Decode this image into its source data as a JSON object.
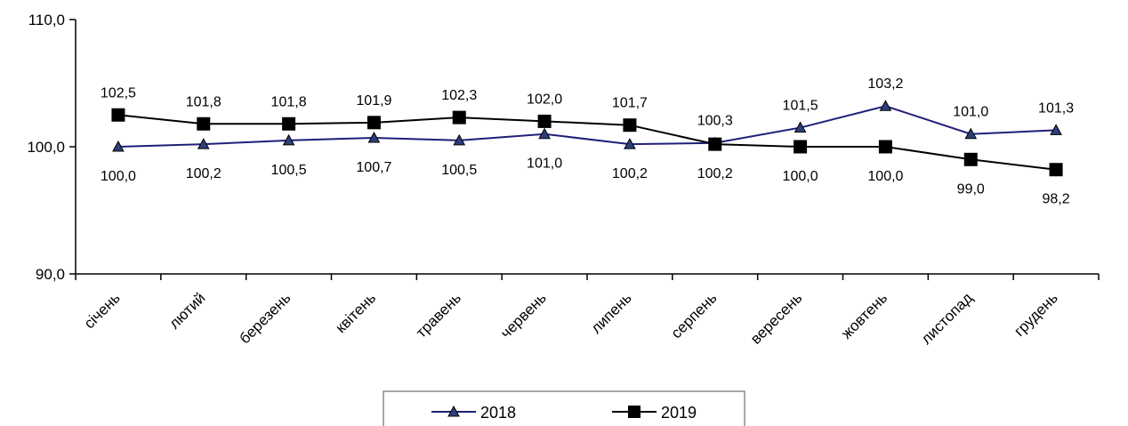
{
  "chart_data": {
    "type": "line",
    "categories": [
      "січень",
      "лютий",
      "березень",
      "квітень",
      "травень",
      "червень",
      "липень",
      "серпень",
      "вересень",
      "жовтень",
      "листопад",
      "грудень"
    ],
    "series": [
      {
        "name": "2018",
        "values": [
          100.0,
          100.2,
          100.5,
          100.7,
          100.5,
          101.0,
          100.2,
          100.3,
          101.5,
          103.2,
          101.0,
          101.3
        ],
        "labels": [
          "100,0",
          "100,2",
          "100,5",
          "100,7",
          "100,5",
          "101,0",
          "100,2",
          "100,3",
          "101,5",
          "103,2",
          "101,0",
          "101,3"
        ],
        "color": "#1f1f7a",
        "marker": "triangle"
      },
      {
        "name": "2019",
        "values": [
          102.5,
          101.8,
          101.8,
          101.9,
          102.3,
          102.0,
          101.7,
          100.2,
          100.0,
          100.0,
          99.0,
          98.2
        ],
        "labels": [
          "102,5",
          "101,8",
          "101,8",
          "101,9",
          "102,3",
          "102,0",
          "101,7",
          "100,2",
          "100,0",
          "100,0",
          "99,0",
          "98,2"
        ],
        "color": "#000000",
        "marker": "square"
      }
    ],
    "y_ticks": [
      "90,0",
      "100,0",
      "110,0"
    ],
    "ylim": [
      90,
      110
    ],
    "grid": false,
    "legend_position": "bottom-center"
  }
}
